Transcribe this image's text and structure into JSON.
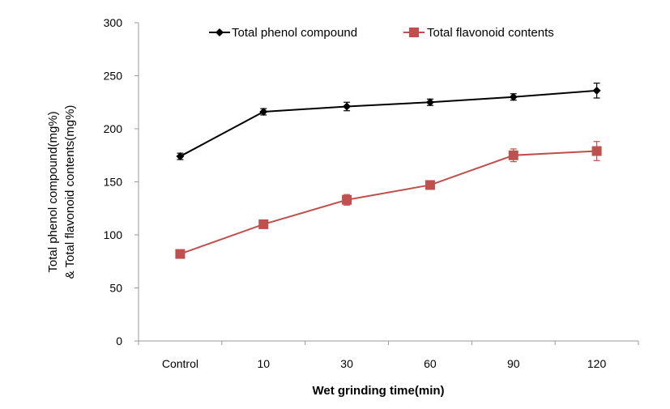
{
  "chart_data": {
    "type": "line",
    "title": "",
    "categories": [
      "Control",
      "10",
      "30",
      "60",
      "90",
      "120"
    ],
    "xlabel": "Wet grinding time(min)",
    "ylabel_lines": [
      "Total phenol compound(mg%)",
      "& Total flavonoid contents(mg%)"
    ],
    "ylim": [
      0,
      300
    ],
    "yticks": [
      "0",
      "50",
      "100",
      "150",
      "200",
      "250",
      "300"
    ],
    "grid": false,
    "legend_position": "top",
    "series": [
      {
        "name": "Total phenol compound",
        "values": [
          174,
          216,
          221,
          225,
          230,
          236
        ],
        "errors": [
          3,
          3,
          4,
          3,
          3,
          7
        ],
        "color": "#000000",
        "marker": "diamond"
      },
      {
        "name": "Total flavonoid contents",
        "values": [
          82,
          110,
          133,
          147,
          175,
          179
        ],
        "errors": [
          2,
          3,
          5,
          3,
          6,
          9
        ],
        "color": "#c0504d",
        "marker": "square"
      }
    ]
  }
}
